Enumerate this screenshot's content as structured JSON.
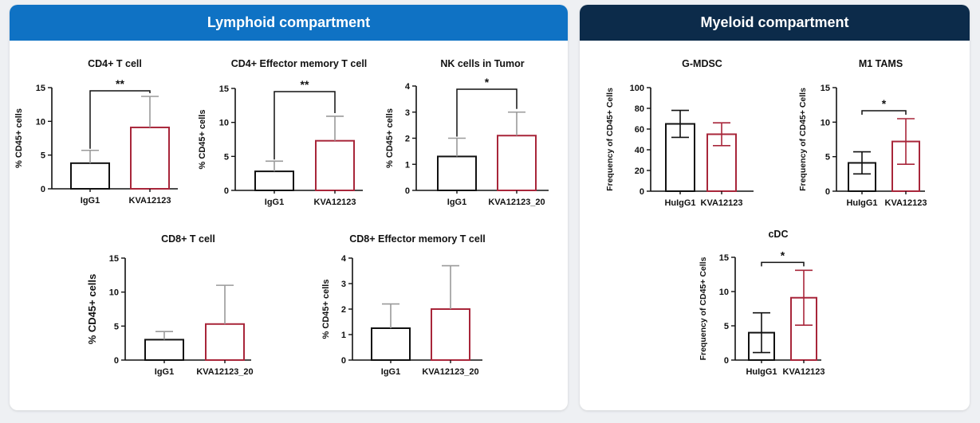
{
  "lymphoid": {
    "title": "Lymphoid compartment",
    "accent": "#0f72c4"
  },
  "myeloid": {
    "title": "Myeloid compartment",
    "accent": "#0c2b4a"
  },
  "colors": {
    "control": "#111111",
    "treated": "#a8263a",
    "axis": "#111111",
    "errorbar_light": "#9a9a9a",
    "errorbar_dark": "#111111"
  },
  "chart_data": [
    {
      "id": "cd4-t-cell",
      "type": "bar",
      "title": "CD4+ T cell",
      "ylabel": "% CD45+ cells",
      "ylim": [
        0,
        15
      ],
      "yticks": [
        0,
        5,
        10,
        15
      ],
      "categories": [
        "IgG1",
        "KVA12123"
      ],
      "values": [
        3.8,
        9.1
      ],
      "errors": [
        1.9,
        4.6
      ],
      "error_style": "upper",
      "significance": "**"
    },
    {
      "id": "cd4-effector-memory",
      "type": "bar",
      "title": "CD4+ Effector memory T cell",
      "ylabel": "% CD45+ cells",
      "ylim": [
        0,
        15
      ],
      "yticks": [
        0,
        5,
        10,
        15
      ],
      "categories": [
        "IgG1",
        "KVA12123"
      ],
      "values": [
        2.8,
        7.3
      ],
      "errors": [
        1.5,
        3.6
      ],
      "error_style": "upper",
      "significance": "**"
    },
    {
      "id": "nk-cells-tumor",
      "type": "bar",
      "title": "NK cells in Tumor",
      "ylabel": "% CD45+ cells",
      "ylim": [
        0,
        4
      ],
      "yticks": [
        0,
        1,
        2,
        3,
        4
      ],
      "categories": [
        "IgG1",
        "KVA12123_20"
      ],
      "values": [
        1.3,
        2.1
      ],
      "errors": [
        0.7,
        0.9
      ],
      "error_style": "upper",
      "significance": "*"
    },
    {
      "id": "cd8-t-cell",
      "type": "bar",
      "title": "CD8+ T cell",
      "ylabel": "% CD45+ cells",
      "ylim": [
        0,
        15
      ],
      "yticks": [
        0,
        5,
        10,
        15
      ],
      "categories": [
        "IgG1",
        "KVA12123_20"
      ],
      "values": [
        3.0,
        5.3
      ],
      "errors": [
        1.2,
        5.7
      ],
      "error_style": "upper",
      "significance": ""
    },
    {
      "id": "cd8-effector-memory",
      "type": "bar",
      "title": "CD8+ Effector memory T cell",
      "ylabel": "% CD45+ cells",
      "ylim": [
        0,
        4
      ],
      "yticks": [
        0,
        1,
        2,
        3,
        4
      ],
      "categories": [
        "IgG1",
        "KVA12123_20"
      ],
      "values": [
        1.25,
        2.0
      ],
      "errors": [
        0.95,
        1.7
      ],
      "error_style": "upper",
      "significance": ""
    },
    {
      "id": "g-mdsc",
      "type": "bar",
      "title": "G-MDSC",
      "ylabel": "Frequency of CD45+ Cells",
      "ylim": [
        0,
        100
      ],
      "yticks": [
        0,
        20,
        40,
        60,
        80,
        100
      ],
      "categories": [
        "HuIgG1",
        "KVA12123"
      ],
      "values": [
        65,
        55
      ],
      "errors": [
        13,
        11
      ],
      "error_style": "both",
      "significance": ""
    },
    {
      "id": "m1-tams",
      "type": "bar",
      "title": "M1 TAMS",
      "ylabel": "Frequency of CD45+ Cells",
      "ylim": [
        0,
        15
      ],
      "yticks": [
        0,
        5,
        10,
        15
      ],
      "categories": [
        "HuIgG1",
        "KVA12123"
      ],
      "values": [
        4.1,
        7.2
      ],
      "errors": [
        1.6,
        3.3
      ],
      "error_style": "both",
      "significance": "*"
    },
    {
      "id": "cdc",
      "type": "bar",
      "title": "cDC",
      "ylabel": "Frequency of CD45+ Cells",
      "ylim": [
        0,
        15
      ],
      "yticks": [
        0,
        5,
        10,
        15
      ],
      "categories": [
        "HuIgG1",
        "KVA12123"
      ],
      "values": [
        4.0,
        9.1
      ],
      "errors": [
        2.9,
        4.0
      ],
      "error_style": "both",
      "significance": "*"
    }
  ]
}
